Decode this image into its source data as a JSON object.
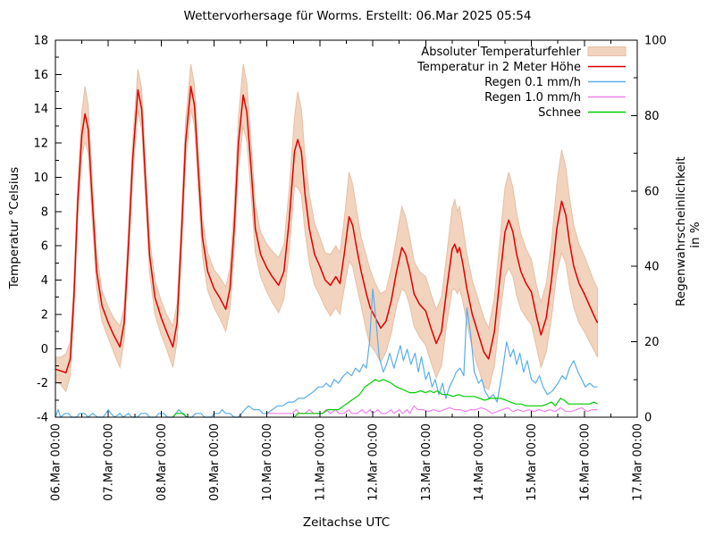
{
  "title": "Wettervorhersage für Worms. Erstellt: 06.Mar 2025 05:54",
  "chart_data": {
    "type": "line",
    "title": "Wettervorhersage für Worms. Erstellt: 06.Mar 2025 05:54",
    "xlabel": "Zeitachse UTC",
    "ylabel_left": "Temperatur °Celsius",
    "ylabel_right": "Regenwahrscheinlichkeit in %",
    "x_axis": {
      "unit": "days since 06.Mar 2025 00:00 UTC",
      "range": [
        0,
        11
      ],
      "tick_labels": [
        "06.Mar 00:00",
        "07.Mar 00:00",
        "08.Mar 00:00",
        "09.Mar 00:00",
        "10.Mar 00:00",
        "11.Mar 00:00",
        "12.Mar 00:00",
        "13.Mar 00:00",
        "14.Mar 00:00",
        "15.Mar 00:00",
        "16.Mar 00:00",
        "17.Mar 00:00"
      ],
      "major_tick_step": 1,
      "minor_tick_step": 0.5
    },
    "y_left": {
      "range": [
        -4,
        18
      ],
      "ticks": [
        -4,
        -2,
        0,
        2,
        4,
        6,
        8,
        10,
        12,
        14,
        16,
        18
      ],
      "minor_step": 1
    },
    "y_right": {
      "range": [
        0,
        100
      ],
      "ticks": [
        0,
        20,
        40,
        60,
        80,
        100
      ],
      "minor_step": 10
    },
    "grid": false,
    "legend_position": "top-right-inside",
    "legend": [
      {
        "label": "Absoluter Temperaturfehler",
        "type": "band",
        "color": "#f2d3be"
      },
      {
        "label": "Temperatur in 2 Meter Höhe",
        "type": "line",
        "color": "#dd0000"
      },
      {
        "label": "Regen 0.1 mm/h",
        "type": "line",
        "color": "#5aaee8"
      },
      {
        "label": "Regen 1.0 mm/h",
        "type": "line",
        "color": "#ee82ee"
      },
      {
        "label": "Schnee",
        "type": "line",
        "color": "#00cc00"
      }
    ],
    "series": {
      "temperature": {
        "name": "Temperatur in 2 Meter Höhe",
        "axis": "left",
        "color": "#dd0000",
        "unit": "°C",
        "x": [
          0.0,
          0.1,
          0.2,
          0.28,
          0.35,
          0.42,
          0.5,
          0.56,
          0.62,
          0.7,
          0.78,
          0.88,
          1.0,
          1.1,
          1.22,
          1.3,
          1.38,
          1.46,
          1.56,
          1.63,
          1.7,
          1.78,
          1.88,
          2.0,
          2.1,
          2.22,
          2.3,
          2.38,
          2.46,
          2.56,
          2.63,
          2.7,
          2.78,
          2.88,
          3.0,
          3.1,
          3.22,
          3.3,
          3.38,
          3.46,
          3.55,
          3.62,
          3.7,
          3.78,
          3.88,
          4.0,
          4.1,
          4.22,
          4.32,
          4.42,
          4.52,
          4.58,
          4.65,
          4.72,
          4.8,
          4.9,
          5.0,
          5.1,
          5.2,
          5.3,
          5.38,
          5.46,
          5.55,
          5.62,
          5.7,
          5.78,
          5.88,
          5.95,
          6.05,
          6.15,
          6.25,
          6.35,
          6.45,
          6.55,
          6.62,
          6.7,
          6.78,
          6.88,
          7.0,
          7.1,
          7.2,
          7.3,
          7.4,
          7.5,
          7.55,
          7.6,
          7.64,
          7.7,
          7.78,
          7.88,
          8.0,
          8.1,
          8.19,
          8.3,
          8.4,
          8.5,
          8.57,
          8.65,
          8.72,
          8.8,
          8.9,
          9.0,
          9.1,
          9.18,
          9.28,
          9.38,
          9.48,
          9.57,
          9.65,
          9.72,
          9.8,
          9.9,
          10.0,
          10.1,
          10.2,
          10.25
        ],
        "values": [
          -1.2,
          -1.3,
          -1.4,
          -0.6,
          3.0,
          8.5,
          12.5,
          13.7,
          12.8,
          8.5,
          4.5,
          2.5,
          1.5,
          0.8,
          0.1,
          1.5,
          6.0,
          11.0,
          15.1,
          14.0,
          10.0,
          5.5,
          3.0,
          1.8,
          1.0,
          0.1,
          1.5,
          6.5,
          12.0,
          15.3,
          14.2,
          10.5,
          6.5,
          4.5,
          3.5,
          3.0,
          2.3,
          3.5,
          7.0,
          12.0,
          14.8,
          13.8,
          10.5,
          7.0,
          5.5,
          4.7,
          4.2,
          3.7,
          4.5,
          7.5,
          11.5,
          12.2,
          11.5,
          9.0,
          7.0,
          5.5,
          4.8,
          4.0,
          3.7,
          4.2,
          3.8,
          5.5,
          7.7,
          7.2,
          5.8,
          4.5,
          3.2,
          2.4,
          1.8,
          1.2,
          1.6,
          2.8,
          4.5,
          5.9,
          5.5,
          4.5,
          3.2,
          2.6,
          2.2,
          1.2,
          0.3,
          1.0,
          3.5,
          5.8,
          6.1,
          5.6,
          5.9,
          5.0,
          3.5,
          2.0,
          0.8,
          -0.2,
          -0.6,
          1.0,
          4.0,
          6.8,
          7.5,
          6.8,
          5.5,
          4.5,
          3.8,
          3.3,
          1.8,
          0.8,
          1.8,
          4.0,
          7.0,
          8.6,
          7.8,
          6.2,
          4.8,
          3.8,
          3.2,
          2.5,
          1.8,
          1.5
        ]
      },
      "temperature_error": {
        "name": "Absoluter Temperaturfehler",
        "axis": "left",
        "color": "#f2d3be",
        "edge_color": "#e5c0a5",
        "band_around": "temperature",
        "half_width": [
          0.7,
          0.8,
          1.1,
          1.0,
          0.9,
          1.0,
          1.3,
          1.6,
          1.4,
          1.2,
          1.0,
          0.9,
          0.9,
          1.0,
          1.2,
          1.0,
          1.0,
          1.1,
          1.2,
          1.2,
          1.1,
          1.0,
          1.0,
          1.0,
          1.0,
          1.2,
          1.1,
          1.1,
          1.2,
          1.3,
          1.2,
          1.2,
          1.1,
          1.1,
          1.1,
          1.2,
          1.3,
          1.2,
          1.3,
          1.5,
          1.8,
          1.7,
          1.5,
          1.4,
          1.3,
          1.4,
          1.5,
          1.6,
          1.6,
          1.8,
          2.0,
          2.8,
          2.5,
          2.2,
          2.0,
          1.8,
          1.7,
          1.6,
          1.8,
          1.8,
          1.8,
          2.0,
          2.6,
          2.4,
          2.2,
          2.0,
          2.2,
          2.2,
          2.0,
          2.0,
          1.8,
          1.9,
          2.0,
          2.4,
          2.2,
          2.0,
          1.9,
          1.9,
          2.0,
          2.0,
          2.0,
          2.0,
          2.0,
          2.4,
          2.6,
          2.4,
          2.4,
          2.2,
          2.0,
          2.0,
          2.0,
          2.0,
          1.8,
          2.0,
          2.2,
          2.6,
          2.8,
          2.6,
          2.4,
          2.2,
          2.0,
          1.9,
          1.8,
          1.9,
          2.0,
          2.2,
          2.6,
          3.0,
          2.8,
          2.6,
          2.4,
          2.3,
          2.2,
          2.1,
          2.0,
          2.0
        ]
      },
      "rain_01": {
        "name": "Regen 0.1 mm/h",
        "axis": "right",
        "color": "#5aaee8",
        "unit": "%",
        "x": [
          0.0,
          0.05,
          0.1,
          0.18,
          0.25,
          0.3,
          0.4,
          0.45,
          0.55,
          0.62,
          0.7,
          0.8,
          0.9,
          0.95,
          1.0,
          1.05,
          1.12,
          1.22,
          1.28,
          1.38,
          1.45,
          1.55,
          1.62,
          1.72,
          1.78,
          1.9,
          1.95,
          2.05,
          2.12,
          2.22,
          2.28,
          2.33,
          2.4,
          2.48,
          2.58,
          2.65,
          2.75,
          2.82,
          2.95,
          3.0,
          3.1,
          3.15,
          3.22,
          3.3,
          3.38,
          3.45,
          3.52,
          3.58,
          3.65,
          3.75,
          3.85,
          3.92,
          4.0,
          4.1,
          4.2,
          4.3,
          4.4,
          4.5,
          4.6,
          4.7,
          4.8,
          4.9,
          4.97,
          5.05,
          5.12,
          5.2,
          5.27,
          5.35,
          5.45,
          5.52,
          5.6,
          5.67,
          5.75,
          5.82,
          5.88,
          5.94,
          6.0,
          6.06,
          6.12,
          6.2,
          6.26,
          6.32,
          6.4,
          6.46,
          6.52,
          6.58,
          6.65,
          6.72,
          6.8,
          6.86,
          6.92,
          7.0,
          7.06,
          7.12,
          7.18,
          7.25,
          7.32,
          7.38,
          7.45,
          7.52,
          7.58,
          7.65,
          7.72,
          7.78,
          7.85,
          7.92,
          8.0,
          8.06,
          8.12,
          8.2,
          8.28,
          8.35,
          8.45,
          8.53,
          8.6,
          8.66,
          8.72,
          8.78,
          8.85,
          8.92,
          9.0,
          9.08,
          9.15,
          9.22,
          9.3,
          9.4,
          9.5,
          9.58,
          9.65,
          9.72,
          9.8,
          9.88,
          9.95,
          10.02,
          10.1,
          10.18,
          10.25
        ],
        "values": [
          0,
          2,
          0,
          1,
          1,
          0,
          0,
          1,
          1,
          0,
          1,
          0,
          0,
          1,
          2,
          1,
          0,
          1,
          0,
          1,
          0,
          0,
          1,
          1,
          0,
          0,
          1,
          1,
          0,
          0,
          1,
          2,
          1,
          0,
          0,
          1,
          1,
          0,
          0,
          1,
          1,
          2,
          1,
          1,
          0,
          0,
          1,
          2,
          3,
          2,
          2,
          1,
          1,
          2,
          3,
          3,
          4,
          4,
          5,
          5,
          6,
          7,
          8,
          8,
          9,
          8,
          10,
          9,
          11,
          12,
          11,
          13,
          12,
          14,
          13,
          20,
          34,
          26,
          16,
          12,
          14,
          17,
          13,
          16,
          19,
          15,
          18,
          14,
          17,
          12,
          16,
          10,
          12,
          8,
          10,
          6,
          9,
          5,
          8,
          10,
          12,
          13,
          11,
          29,
          22,
          12,
          9,
          10,
          7,
          5,
          6,
          4,
          12,
          20,
          16,
          18,
          14,
          17,
          12,
          15,
          10,
          9,
          11,
          8,
          6,
          7,
          9,
          11,
          10,
          13,
          15,
          12,
          10,
          8,
          9,
          8,
          8
        ]
      },
      "rain_10": {
        "name": "Regen 1.0 mm/h",
        "axis": "right",
        "color": "#ee82ee",
        "unit": "%",
        "x": [
          4.0,
          4.08,
          4.18,
          4.28,
          4.38,
          4.48,
          4.55,
          4.62,
          4.72,
          4.8,
          4.88,
          4.98,
          5.05,
          5.12,
          5.2,
          5.3,
          5.36,
          5.45,
          5.55,
          5.6,
          5.7,
          5.8,
          5.86,
          5.95,
          6.0,
          6.1,
          6.16,
          6.25,
          6.35,
          6.4,
          6.5,
          6.56,
          6.65,
          6.7,
          6.78,
          6.85,
          6.95,
          7.05,
          7.15,
          7.25,
          7.35,
          7.45,
          7.55,
          7.65,
          7.75,
          7.85,
          7.95,
          8.05,
          8.15,
          8.25,
          8.35,
          8.45,
          8.55,
          8.65,
          8.75,
          8.85,
          8.95,
          9.05,
          9.15,
          9.25,
          9.35,
          9.45,
          9.55,
          9.65,
          9.75,
          9.85,
          9.95,
          10.05,
          10.15,
          10.25
        ],
        "values": [
          1,
          1,
          1,
          1,
          1,
          1,
          2,
          1,
          1,
          2,
          1,
          1,
          1,
          2,
          1,
          2,
          1,
          1,
          2,
          1,
          1,
          2,
          1,
          2,
          1,
          2,
          1,
          1,
          2,
          1,
          2,
          1,
          2,
          1,
          3,
          2,
          2,
          1.5,
          2,
          1.5,
          2,
          2.5,
          2,
          2,
          1.5,
          2,
          2,
          2.5,
          2,
          1,
          1.5,
          2,
          2.5,
          1.5,
          2,
          1.5,
          2,
          1.5,
          2,
          1.5,
          2,
          1.5,
          2.5,
          1.5,
          1.5,
          2,
          2.5,
          1.5,
          2,
          2
        ]
      },
      "snow": {
        "name": "Schnee",
        "axis": "right",
        "color": "#00cc00",
        "unit": "%",
        "x": [
          2.22,
          2.28,
          2.35,
          2.42,
          2.48,
          null,
          4.52,
          4.58,
          4.7,
          4.82,
          4.95,
          5.05,
          5.15,
          5.25,
          5.35,
          5.45,
          5.55,
          5.65,
          5.75,
          5.85,
          5.95,
          6.05,
          6.12,
          6.2,
          6.28,
          6.35,
          6.45,
          6.55,
          6.62,
          6.7,
          6.8,
          6.9,
          7.0,
          7.08,
          7.15,
          7.22,
          7.32,
          7.42,
          7.52,
          7.62,
          7.72,
          7.82,
          7.92,
          8.02,
          8.12,
          8.22,
          8.32,
          8.42,
          8.52,
          8.6,
          8.7,
          8.8,
          8.9,
          9.0,
          9.1,
          9.2,
          9.3,
          9.38,
          9.45,
          9.55,
          9.62,
          9.7,
          9.8,
          9.9,
          10.0,
          10.1,
          10.18,
          10.25
        ],
        "values": [
          0,
          1,
          1,
          1,
          0,
          null,
          0,
          1,
          1,
          1,
          1,
          1,
          2,
          2,
          2,
          3,
          4,
          5,
          6,
          8,
          9,
          10,
          9.5,
          10,
          9.5,
          9,
          8,
          7.5,
          7,
          6.5,
          6.5,
          7,
          6.5,
          7,
          6.5,
          7,
          6,
          6,
          5.5,
          6,
          5.5,
          5.5,
          5.5,
          5,
          4.5,
          5,
          5,
          5,
          4.5,
          4,
          3.5,
          3.5,
          3,
          3,
          3,
          3,
          3.5,
          4,
          3,
          5,
          4.5,
          3.5,
          3.5,
          3.5,
          3.5,
          3.5,
          4,
          3.5
        ]
      }
    }
  }
}
